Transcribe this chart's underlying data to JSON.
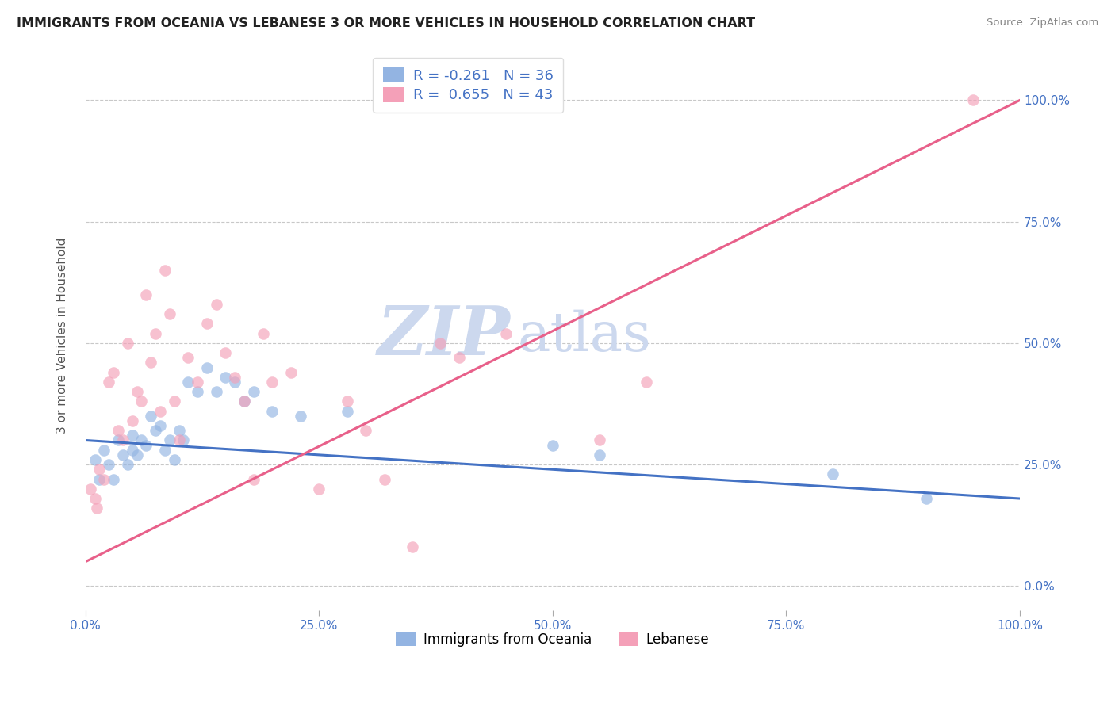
{
  "title": "IMMIGRANTS FROM OCEANIA VS LEBANESE 3 OR MORE VEHICLES IN HOUSEHOLD CORRELATION CHART",
  "source": "Source: ZipAtlas.com",
  "ylabel": "3 or more Vehicles in Household",
  "xlim": [
    0.0,
    100.0
  ],
  "ylim": [
    -5.0,
    108.0
  ],
  "yticks": [
    0,
    25,
    50,
    75,
    100
  ],
  "ytick_labels": [
    "0.0%",
    "25.0%",
    "50.0%",
    "75.0%",
    "100.0%"
  ],
  "xticks": [
    0,
    25,
    50,
    75,
    100
  ],
  "xtick_labels": [
    "0.0%",
    "25.0%",
    "50.0%",
    "75.0%",
    "100.0%"
  ],
  "legend_label1": "Immigrants from Oceania",
  "legend_label2": "Lebanese",
  "r1": -0.261,
  "n1": 36,
  "r2": 0.655,
  "n2": 43,
  "color1": "#93b4e2",
  "color2": "#f4a0b8",
  "line_color1": "#4472c4",
  "line_color2": "#e8608a",
  "line1_x0": 0,
  "line1_y0": 30.0,
  "line1_x1": 100,
  "line1_y1": 18.0,
  "line2_x0": 0,
  "line2_y0": 5.0,
  "line2_x1": 100,
  "line2_y1": 100.0,
  "scatter1_x": [
    1.0,
    1.5,
    2.0,
    2.5,
    3.0,
    3.5,
    4.0,
    4.5,
    5.0,
    5.0,
    5.5,
    6.0,
    6.5,
    7.0,
    7.5,
    8.0,
    8.5,
    9.0,
    9.5,
    10.0,
    10.5,
    11.0,
    12.0,
    13.0,
    14.0,
    15.0,
    16.0,
    17.0,
    18.0,
    20.0,
    23.0,
    28.0,
    50.0,
    55.0,
    80.0,
    90.0
  ],
  "scatter1_y": [
    26,
    22,
    28,
    25,
    22,
    30,
    27,
    25,
    31,
    28,
    27,
    30,
    29,
    35,
    32,
    33,
    28,
    30,
    26,
    32,
    30,
    42,
    40,
    45,
    40,
    43,
    42,
    38,
    40,
    36,
    35,
    36,
    29,
    27,
    23,
    18
  ],
  "scatter2_x": [
    0.5,
    1.0,
    1.2,
    1.5,
    2.0,
    2.5,
    3.0,
    3.5,
    4.0,
    4.5,
    5.0,
    5.5,
    6.0,
    6.5,
    7.0,
    7.5,
    8.0,
    8.5,
    9.0,
    9.5,
    10.0,
    11.0,
    12.0,
    13.0,
    14.0,
    15.0,
    16.0,
    17.0,
    18.0,
    19.0,
    20.0,
    22.0,
    25.0,
    28.0,
    30.0,
    32.0,
    35.0,
    38.0,
    40.0,
    45.0,
    55.0,
    60.0,
    95.0
  ],
  "scatter2_y": [
    20,
    18,
    16,
    24,
    22,
    42,
    44,
    32,
    30,
    50,
    34,
    40,
    38,
    60,
    46,
    52,
    36,
    65,
    56,
    38,
    30,
    47,
    42,
    54,
    58,
    48,
    43,
    38,
    22,
    52,
    42,
    44,
    20,
    38,
    32,
    22,
    8,
    50,
    47,
    52,
    30,
    42,
    100
  ],
  "background_color": "#ffffff",
  "title_color": "#222222",
  "grid_color": "#c8c8c8",
  "tick_label_color": "#4472c4",
  "axis_label_color": "#555555",
  "title_fontsize": 11.5,
  "source_fontsize": 9.5,
  "legend_fontsize": 13,
  "marker_size": 110,
  "marker_alpha": 0.65
}
